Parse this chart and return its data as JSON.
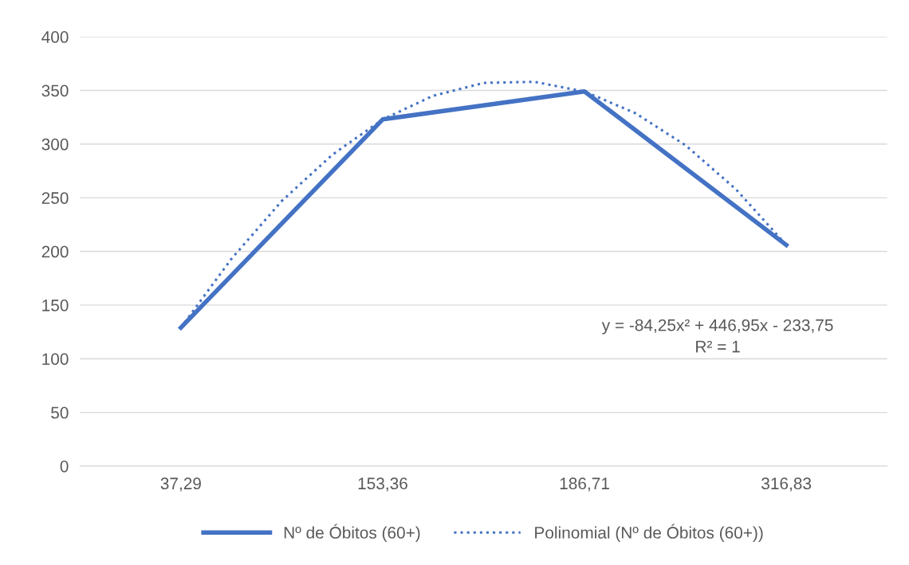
{
  "chart_data": {
    "type": "line",
    "categories": [
      "37,29",
      null,
      null,
      null,
      "153,36",
      null,
      null,
      null,
      "186,71",
      null,
      null,
      null,
      "316,83"
    ],
    "ylim": [
      0,
      400
    ],
    "yticks": [
      0,
      50,
      100,
      150,
      200,
      250,
      300,
      350,
      400
    ],
    "grid": "y",
    "legend": "bottom",
    "series": [
      {
        "name": "Nº de Óbitos (60+)",
        "color": "#4472c4",
        "line_style": "solid",
        "values": [
          129,
          null,
          null,
          null,
          323,
          null,
          null,
          null,
          349,
          null,
          null,
          null,
          206
        ]
      },
      {
        "name": "Polinomial (Nº de Óbitos (60+))",
        "color": "#4472c4",
        "line_style": "dotted",
        "values": [
          129,
          193,
          247,
          290,
          323,
          345,
          357,
          358,
          349,
          329,
          299,
          258,
          206
        ]
      }
    ],
    "annotations": [
      "y = -84,25x² + 446,95x - 233,75",
      "R² = 1"
    ]
  }
}
